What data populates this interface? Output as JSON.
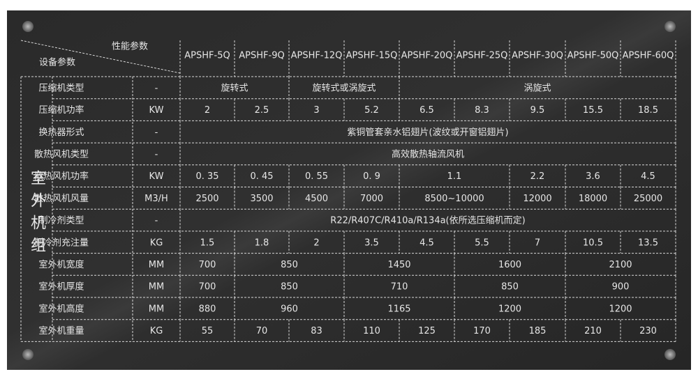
{
  "header": {
    "perf_label": "性能参数",
    "equip_label": "设备参数",
    "models": [
      "APSHF-5Q",
      "APSHF-9Q",
      "APSHF-12Q",
      "APSHF-15Q",
      "APSHF-20Q",
      "APSHF-25Q",
      "APSHF-30Q",
      "APSHF-50Q",
      "APSHF-60Q"
    ]
  },
  "group_label": "室外机组",
  "rows": [
    {
      "name": "压缩机类型",
      "unit": "-",
      "cells": [
        {
          "text": "旋转式",
          "span": 2
        },
        {
          "text": "旋转式或涡旋式",
          "span": 2
        },
        {
          "text": "涡旋式",
          "span": 5
        }
      ]
    },
    {
      "name": "压缩机功率",
      "unit": "KW",
      "cells": [
        {
          "text": "2",
          "span": 1
        },
        {
          "text": "2.5",
          "span": 1
        },
        {
          "text": "3",
          "span": 1
        },
        {
          "text": "5.2",
          "span": 1
        },
        {
          "text": "6.5",
          "span": 1
        },
        {
          "text": "8.3",
          "span": 1
        },
        {
          "text": "9.5",
          "span": 1
        },
        {
          "text": "15.5",
          "span": 1
        },
        {
          "text": "18.5",
          "span": 1
        }
      ]
    },
    {
      "name": "换热器形式",
      "unit": "-",
      "cells": [
        {
          "text": "紫铜管套亲水铝翅片(波纹或开窗铝翅片)",
          "span": 9
        }
      ]
    },
    {
      "name": "散热风机类型",
      "unit": "-",
      "cells": [
        {
          "text": "高效散热轴流风机",
          "span": 9
        }
      ]
    },
    {
      "name": "散热风机功率",
      "unit": "KW",
      "cells": [
        {
          "text": "0. 35",
          "span": 1
        },
        {
          "text": "0. 45",
          "span": 1
        },
        {
          "text": "0. 55",
          "span": 1
        },
        {
          "text": "0. 9",
          "span": 1
        },
        {
          "text": "1.1",
          "span": 2
        },
        {
          "text": "2.2",
          "span": 1
        },
        {
          "text": "3.6",
          "span": 1
        },
        {
          "text": "4.5",
          "span": 1
        }
      ]
    },
    {
      "name": "散热风机风量",
      "unit": "M3/H",
      "cells": [
        {
          "text": "2500",
          "span": 1
        },
        {
          "text": "3500",
          "span": 1
        },
        {
          "text": "4500",
          "span": 1
        },
        {
          "text": "7000",
          "span": 1
        },
        {
          "text": "8500~10000",
          "span": 2
        },
        {
          "text": "12000",
          "span": 1
        },
        {
          "text": "18000",
          "span": 1
        },
        {
          "text": "25000",
          "span": 1
        }
      ]
    },
    {
      "name": "制冷剂类型",
      "unit": "-",
      "cells": [
        {
          "text": "R22/R407C/R410a/R134a(依所选压缩机而定)",
          "span": 9
        }
      ]
    },
    {
      "name": "制冷剂充注量",
      "unit": "KG",
      "cells": [
        {
          "text": "1.5",
          "span": 1
        },
        {
          "text": "1.8",
          "span": 1
        },
        {
          "text": "2",
          "span": 1
        },
        {
          "text": "3.5",
          "span": 1
        },
        {
          "text": "4.5",
          "span": 1
        },
        {
          "text": "5.5",
          "span": 1
        },
        {
          "text": "7",
          "span": 1
        },
        {
          "text": "10.5",
          "span": 1
        },
        {
          "text": "13.5",
          "span": 1
        }
      ]
    },
    {
      "name": "室外机宽度",
      "unit": "MM",
      "cells": [
        {
          "text": "700",
          "span": 1
        },
        {
          "text": "850",
          "span": 2
        },
        {
          "text": "1450",
          "span": 2
        },
        {
          "text": "1600",
          "span": 2
        },
        {
          "text": "2100",
          "span": 2
        }
      ]
    },
    {
      "name": "室外机厚度",
      "unit": "MM",
      "cells": [
        {
          "text": "700",
          "span": 1
        },
        {
          "text": "850",
          "span": 2
        },
        {
          "text": "710",
          "span": 2
        },
        {
          "text": "850",
          "span": 2
        },
        {
          "text": "900",
          "span": 2
        }
      ]
    },
    {
      "name": "室外机高度",
      "unit": "MM",
      "cells": [
        {
          "text": "880",
          "span": 1
        },
        {
          "text": "960",
          "span": 2
        },
        {
          "text": "1165",
          "span": 2
        },
        {
          "text": "1200",
          "span": 2
        },
        {
          "text": "1200",
          "span": 2
        }
      ]
    },
    {
      "name": "室外机重量",
      "unit": "KG",
      "cells": [
        {
          "text": "55",
          "span": 1
        },
        {
          "text": "70",
          "span": 1
        },
        {
          "text": "83",
          "span": 1
        },
        {
          "text": "110",
          "span": 1
        },
        {
          "text": "125",
          "span": 1
        },
        {
          "text": "170",
          "span": 1
        },
        {
          "text": "185",
          "span": 1
        },
        {
          "text": "210",
          "span": 1
        },
        {
          "text": "230",
          "span": 1
        }
      ]
    }
  ]
}
